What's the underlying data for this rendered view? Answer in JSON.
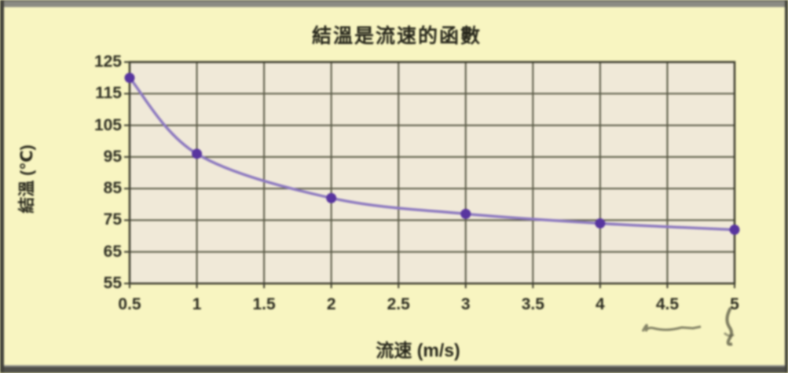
{
  "chart_data": {
    "type": "line",
    "title": "結溫是流速的函數",
    "xlabel": "流速 (m/s)",
    "ylabel": "結溫 (℃)",
    "x": [
      0.5,
      1,
      2,
      3,
      4,
      5
    ],
    "series": [
      {
        "name": "結溫",
        "values": [
          120,
          96,
          82,
          77,
          74,
          72
        ]
      }
    ],
    "xlim": [
      0.5,
      5
    ],
    "ylim": [
      55,
      125
    ],
    "x_ticks": [
      "0.5",
      "1",
      "1.5",
      "2",
      "2.5",
      "3",
      "3.5",
      "4",
      "4.5",
      "5"
    ],
    "y_ticks": [
      "125",
      "115",
      "105",
      "95",
      "85",
      "75",
      "65",
      "55"
    ],
    "grid": "on",
    "legend": "none",
    "marker": "circle",
    "colors": {
      "outer_bg": "#f8f5c1",
      "plot_bg": "#f0e9d8",
      "grid": "#5c5c48",
      "axis": "#3c3c2e",
      "line": "#8d7ac0",
      "marker": "#58359f",
      "text": "#2e2e22"
    }
  }
}
